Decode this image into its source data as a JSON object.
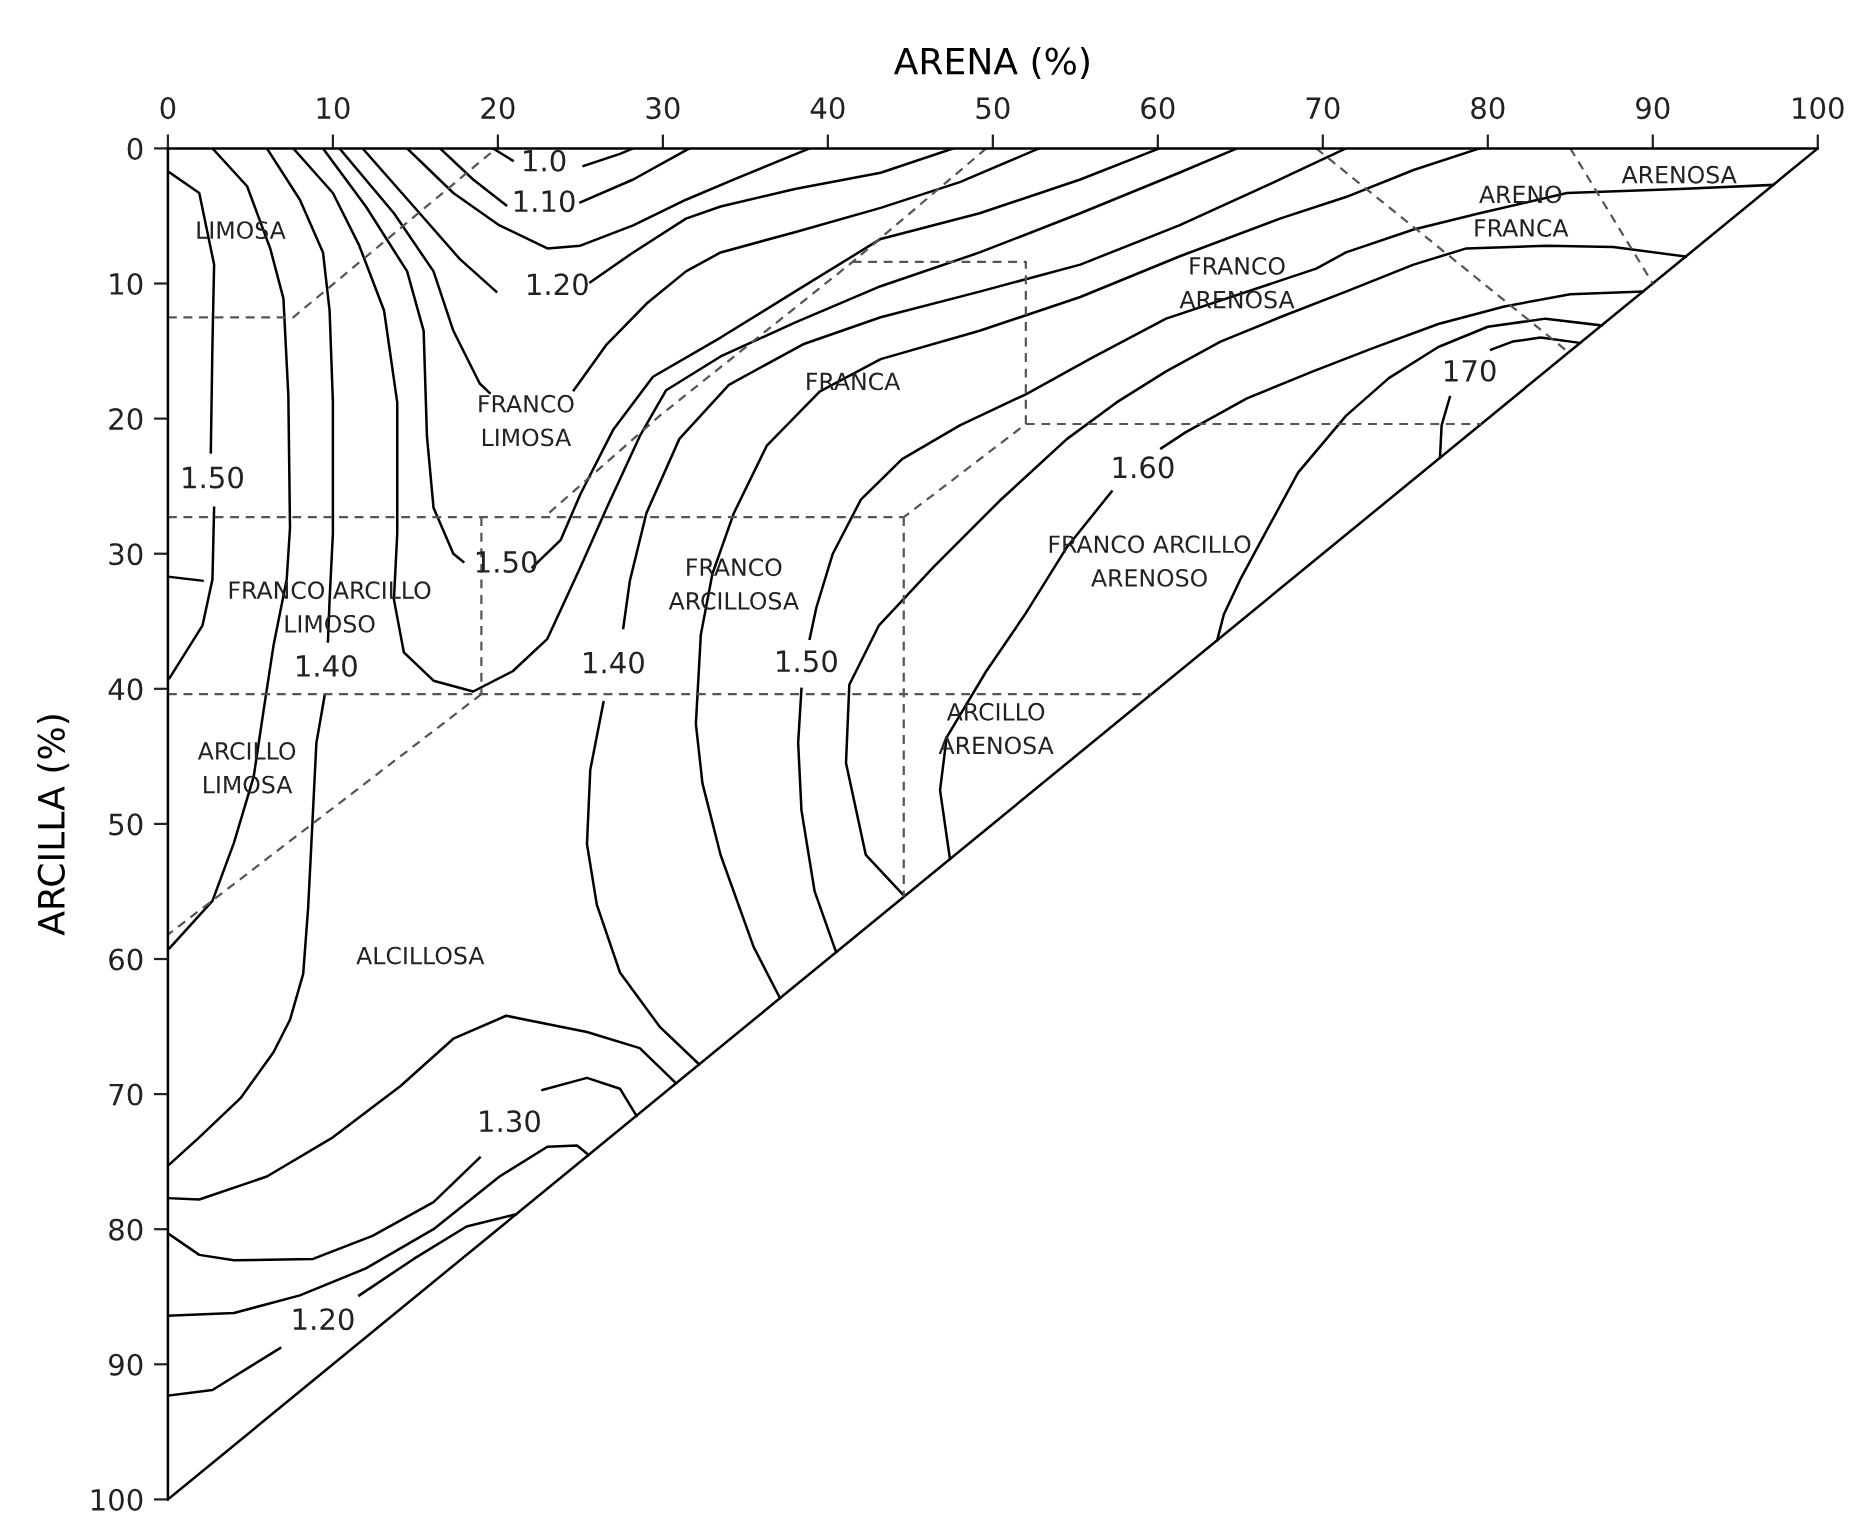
{
  "chart_data": {
    "type": "line",
    "xlabel": "ARENA (%)",
    "ylabel": "ARCILLA (%)",
    "xlim": [
      0,
      100
    ],
    "ylim": [
      100,
      0
    ],
    "xticks": [
      0,
      10,
      20,
      30,
      40,
      50,
      60,
      70,
      80,
      90,
      100
    ],
    "yticks": [
      0,
      10,
      20,
      30,
      40,
      50,
      60,
      70,
      80,
      90,
      100
    ],
    "grid": false,
    "series": [
      {
        "color": "#000000",
        "x": [
          0,
          100
        ],
        "values": [
          100,
          0
        ]
      },
      {
        "name": "1.0",
        "color": "#000000",
        "x": [
          19.7,
          20.9,
          22.8,
          25.2,
          27.4,
          28.2
        ],
        "values": [
          0,
          0.9,
          null,
          1.3,
          0.4,
          0
        ]
      },
      {
        "name": "1.10",
        "color": "#000000",
        "x": [
          16.5,
          18.5,
          20.5,
          22.8,
          25.0,
          28.2,
          31.6
        ],
        "values": [
          0,
          2.3,
          4.2,
          null,
          4.0,
          2.3,
          0
        ]
      },
      {
        "color": "#000000",
        "x": [
          14.5,
          17.3,
          20.1,
          23.0,
          25.0,
          28.2,
          31.4,
          34.5,
          38.9
        ],
        "values": [
          0,
          3.3,
          5.7,
          7.4,
          7.2,
          5.7,
          3.8,
          2.2,
          0
        ]
      },
      {
        "name": "1.20",
        "color": "#000000",
        "x": [
          11.8,
          14.9,
          17.7,
          19.9,
          23.6,
          25.6,
          28.2,
          31.4,
          33.5,
          38,
          43.2,
          47.6
        ],
        "values": [
          0,
          4.3,
          8.2,
          10.6,
          null,
          9.9,
          7.7,
          5.2,
          4.3,
          3.0,
          1.8,
          0
        ]
      },
      {
        "color": "#000000",
        "x": [
          10.4,
          13.7,
          16.1,
          17.3,
          18.9,
          19.5,
          22,
          24.6,
          26.6,
          29.0,
          31.4,
          33.5,
          38,
          43.2,
          48,
          52.8
        ],
        "values": [
          0,
          4.8,
          9.1,
          13.5,
          17.4,
          18.1,
          null,
          17.9,
          14.5,
          11.5,
          9.1,
          7.7,
          6.2,
          4.4,
          2.5,
          0
        ]
      },
      {
        "name": "1.50",
        "color": "#000000",
        "x": [
          9.4,
          12.0,
          14.5,
          15.5,
          15.7,
          16.1,
          17.3,
          17.9,
          20.5,
          22.1,
          23.8,
          25.0,
          27.0,
          29.4,
          33.5,
          38,
          43.2,
          49.2,
          55.3,
          60.1
        ],
        "values": [
          0,
          4.3,
          9.1,
          13.5,
          21.3,
          26.6,
          30.0,
          30.6,
          null,
          31.0,
          29.0,
          25.6,
          20.8,
          16.9,
          14.0,
          10.6,
          6.7,
          4.8,
          2.3,
          0
        ]
      },
      {
        "color": "#000000",
        "x": [
          7.6,
          10.0,
          11.6,
          13.1,
          13.9,
          13.9,
          13.7,
          14.3,
          16.1,
          18.5,
          20.9,
          23.0,
          25.0,
          26.6,
          28.6,
          30.2,
          33.5,
          38,
          43.2,
          49.2,
          55.3,
          61.3,
          64.8
        ],
        "values": [
          0,
          3.3,
          7.2,
          12.0,
          18.8,
          28.5,
          33.4,
          37.3,
          39.4,
          40.2,
          38.7,
          36.3,
          31.0,
          26.6,
          21.3,
          17.9,
          15.4,
          12.9,
          10.2,
          7.7,
          4.8,
          1.8,
          0
        ]
      },
      {
        "name": "1.40",
        "color": "#000000",
        "x": [
          71.4,
          67.4,
          61.3,
          55.3,
          49.2,
          43.2,
          38.5,
          34,
          31,
          29,
          28,
          27.6,
          27.0,
          26.4,
          25.6,
          25.4,
          26,
          27.4,
          29.8,
          32.2
        ],
        "values": [
          0,
          2.3,
          5.7,
          8.6,
          10.6,
          12.5,
          14.5,
          17.5,
          21.5,
          27,
          32,
          35.5,
          null,
          41,
          46,
          51.5,
          56,
          61,
          65,
          67.8
        ]
      },
      {
        "color": "#000000",
        "x": [
          79.5,
          75.5,
          71.4,
          67.4,
          61.3,
          55.3,
          49.2,
          43.2,
          39.5,
          36.3,
          34.3,
          33,
          32.3,
          32,
          32.4,
          33.5,
          35.5,
          37.1
        ],
        "values": [
          0,
          1.6,
          3.6,
          5.2,
          8.0,
          11.0,
          13.5,
          15.6,
          18,
          22,
          27,
          31.5,
          36,
          42.6,
          47,
          52.3,
          59.1,
          62.9
        ]
      },
      {
        "name": "1.50",
        "color": "#000000",
        "x": [
          97.3,
          91.6,
          84.8,
          79.5,
          75.5,
          71.4,
          69.6,
          60.5,
          56,
          52,
          48,
          44.5,
          42,
          40.3,
          39.3,
          38.9,
          38.7,
          38.4,
          38.2,
          38.4,
          39.2,
          40.5
        ],
        "values": [
          2.7,
          3.0,
          3.3,
          4.8,
          6.0,
          7.7,
          8.9,
          12.6,
          15.5,
          18.2,
          20.5,
          23,
          26,
          30,
          34,
          36.3,
          null,
          40,
          44,
          49,
          55,
          59.5
        ]
      },
      {
        "color": "#000000",
        "x": [
          92.0,
          87.6,
          83.6,
          78.7,
          75.5,
          71.4,
          67.4,
          63.8,
          60.5,
          57.5,
          54.5,
          50.4,
          46.4,
          43.1,
          41.3,
          41.1,
          42.3,
          44.6
        ],
        "values": [
          8.0,
          7.3,
          7.2,
          7.4,
          8.6,
          10.6,
          12.5,
          14.3,
          16.5,
          18.8,
          21.5,
          26.1,
          31.0,
          35.3,
          39.7,
          45.5,
          52.3,
          55.3
        ]
      },
      {
        "name": "1.60",
        "color": "#000000",
        "x": [
          89.4,
          85,
          81,
          77,
          73,
          69.4,
          65.4,
          61.7,
          60.2,
          59.1,
          57.2,
          54.5,
          52.0,
          49.6,
          47.2,
          46.8,
          47.4
        ],
        "values": [
          10.6,
          10.8,
          11.7,
          13.0,
          14.8,
          16.5,
          18.5,
          21.0,
          22.2,
          null,
          25.4,
          29.5,
          34.4,
          38.7,
          43.6,
          47.5,
          52.6
        ]
      },
      {
        "color": "#000000",
        "x": [
          86.9,
          83.5,
          80,
          77,
          74,
          71.4,
          68.5,
          66.5,
          65.0,
          64.0,
          63.6
        ],
        "values": [
          13.1,
          12.6,
          13.2,
          14.7,
          17.0,
          19.8,
          24.0,
          28.5,
          31.9,
          34.5,
          36.4
        ]
      },
      {
        "name": "170",
        "color": "#000000",
        "x": [
          77.1,
          77.2,
          77.7,
          78.9,
          80.2,
          81.5,
          83.2,
          85.6
        ],
        "values": [
          22.9,
          20.5,
          18.4,
          null,
          14.9,
          14.3,
          14.0,
          14.4
        ]
      },
      {
        "name": "1.50",
        "color": "#000000",
        "x": [
          0,
          1.9,
          2.8,
          2.7,
          2.6,
          2.7,
          2.8,
          2.7,
          2.1,
          0.1
        ],
        "values": [
          1.7,
          3.3,
          8.6,
          14.5,
          22.5,
          null,
          26.6,
          31.9,
          35.3,
          39.2
        ]
      },
      {
        "color": "#000000",
        "x": [
          0,
          2.1
        ],
        "values": [
          31.7,
          32.0
        ]
      },
      {
        "color": "#000000",
        "x": [
          2.7,
          4.8,
          6.2,
          7.0,
          7.3,
          7.4,
          7.2,
          6.4,
          5.8,
          5.2,
          4.0,
          2.7,
          0.1
        ],
        "values": [
          0,
          2.8,
          7.4,
          11.1,
          18.3,
          28.1,
          31.9,
          36.8,
          41.6,
          46.5,
          51.4,
          55.7,
          59.2
        ]
      },
      {
        "name": "1.40",
        "color": "#000000",
        "x": [
          6.0,
          8.0,
          9.4,
          9.8,
          10.0,
          10.0,
          9.8,
          9.7,
          9.6,
          9.5,
          9.0,
          8.8,
          8.6,
          8.5,
          8.2,
          7.4,
          6.4,
          4.4,
          1.9,
          0.1
        ],
        "values": [
          0,
          3.8,
          7.7,
          12.0,
          18.8,
          28.5,
          33.4,
          36.5,
          null,
          40.5,
          44,
          48.9,
          53.8,
          56.2,
          61.1,
          64.5,
          66.9,
          70.3,
          73.2,
          75.2
        ]
      },
      {
        "color": "#000000",
        "x": [
          0,
          1.9,
          6.0,
          10.0,
          14.1,
          17.3,
          20.5,
          25.4,
          28.6,
          30.8
        ],
        "values": [
          77.7,
          77.8,
          76.1,
          73.2,
          69.4,
          65.9,
          64.2,
          65.4,
          66.6,
          69.2
        ]
      },
      {
        "name": "1.30",
        "color": "#000000",
        "x": [
          0,
          1.9,
          4.0,
          8.8,
          12.4,
          16.1,
          18.9,
          20.7,
          22.7,
          25.4,
          27.4,
          28.4
        ],
        "values": [
          80.3,
          81.9,
          82.3,
          82.2,
          80.5,
          78.0,
          74.7,
          null,
          69.7,
          68.8,
          69.6,
          71.6
        ]
      },
      {
        "color": "#000000",
        "x": [
          0,
          4.0,
          8.0,
          12.0,
          16.1,
          20.1,
          23.0,
          24.8,
          25.5
        ],
        "values": [
          86.4,
          86.2,
          84.9,
          82.9,
          80.0,
          76.1,
          73.9,
          73.8,
          74.5
        ]
      },
      {
        "name": "1.20",
        "color": "#000000",
        "x": [
          0.1,
          2.7,
          6.8,
          9.4,
          11.6,
          14.9,
          18.1,
          21.1
        ],
        "values": [
          92.3,
          91.9,
          88.8,
          null,
          84.9,
          82.2,
          79.8,
          78.9
        ]
      },
      {
        "color": "#555555",
        "line_style": "dashed",
        "x": [
          0,
          7.6,
          19.9
        ],
        "values": [
          12.5,
          12.5,
          0
        ]
      },
      {
        "color": "#555555",
        "line_style": "dashed",
        "x": [
          49.6,
          41.5,
          29.8,
          22.8
        ],
        "values": [
          0,
          8.4,
          19.8,
          27.3
        ]
      },
      {
        "color": "#555555",
        "line_style": "dashed",
        "x": [
          0,
          44.6
        ],
        "values": [
          27.3,
          27.3
        ]
      },
      {
        "color": "#555555",
        "line_style": "dashed",
        "x": [
          19,
          19
        ],
        "values": [
          27.3,
          40.4
        ]
      },
      {
        "color": "#555555",
        "line_style": "dashed",
        "x": [
          0,
          59.6
        ],
        "values": [
          40.4,
          40.4
        ]
      },
      {
        "color": "#555555",
        "line_style": "dashed",
        "x": [
          19,
          0
        ],
        "values": [
          40.4,
          58.2
        ]
      },
      {
        "color": "#555555",
        "line_style": "dashed",
        "x": [
          44.6,
          44.6
        ],
        "values": [
          27.3,
          55.4
        ]
      },
      {
        "color": "#555555",
        "line_style": "dashed",
        "x": [
          41.5,
          52,
          52,
          44.6
        ],
        "values": [
          8.4,
          8.4,
          20.4,
          27.3
        ]
      },
      {
        "color": "#555555",
        "line_style": "dashed",
        "x": [
          52,
          79.6
        ],
        "values": [
          20.4,
          20.4
        ]
      },
      {
        "color": "#555555",
        "line_style": "dashed",
        "x": [
          69.6,
          84.8
        ],
        "values": [
          0,
          15.0
        ]
      },
      {
        "color": "#555555",
        "line_style": "dashed",
        "x": [
          85.0,
          90.0
        ],
        "values": [
          0,
          10.0
        ]
      }
    ],
    "annotations": [
      "LIMOSA",
      "FRANCO\nLIMOSA",
      "FRANCA",
      "FRANCO\nARENOSA",
      "ARENO\nFRANCA",
      "ARENOSA",
      "FRANCO ARCILLO\nLIMOSO",
      "FRANCO\nARCILLOSA",
      "FRANCO ARCILLO\nARENOSO",
      "ARCILLO\nLIMOSA",
      "ARCILLO\nARENOSA",
      "ALCILLOSA"
    ]
  }
}
